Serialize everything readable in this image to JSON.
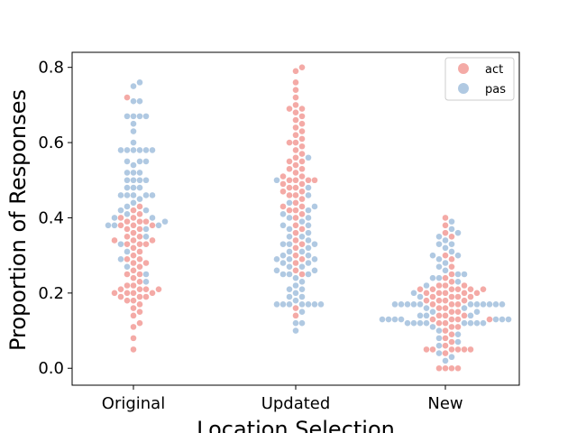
{
  "chart_data": {
    "type": "swarm",
    "xlabel": "Location Selection",
    "ylabel": "Proportion of Responses",
    "ylim": [
      -0.045,
      0.84
    ],
    "yticks": [
      "0.0",
      "0.2",
      "0.4",
      "0.6",
      "0.8"
    ],
    "ytick_values": [
      0.0,
      0.2,
      0.4,
      0.6,
      0.8
    ],
    "categories": [
      "Original",
      "Updated",
      "New"
    ],
    "grid": false,
    "legend_position": "top-right",
    "series": [
      {
        "name": "act",
        "color": "#f4aaa6",
        "values": [
          [
            0.72,
            0.43,
            0.42,
            0.41,
            0.4,
            0.4,
            0.39,
            0.39,
            0.39,
            0.38,
            0.38,
            0.38,
            0.37,
            0.37,
            0.36,
            0.35,
            0.35,
            0.34,
            0.34,
            0.34,
            0.33,
            0.33,
            0.33,
            0.32,
            0.31,
            0.3,
            0.29,
            0.29,
            0.28,
            0.28,
            0.27,
            0.26,
            0.25,
            0.25,
            0.24,
            0.23,
            0.22,
            0.22,
            0.21,
            0.21,
            0.21,
            0.21,
            0.2,
            0.2,
            0.2,
            0.2,
            0.19,
            0.19,
            0.19,
            0.18,
            0.18,
            0.17,
            0.16,
            0.15,
            0.14,
            0.12,
            0.11,
            0.08,
            0.05
          ],
          [
            0.8,
            0.79,
            0.76,
            0.74,
            0.72,
            0.7,
            0.69,
            0.69,
            0.68,
            0.67,
            0.66,
            0.65,
            0.64,
            0.63,
            0.62,
            0.61,
            0.6,
            0.6,
            0.59,
            0.58,
            0.57,
            0.56,
            0.55,
            0.55,
            0.54,
            0.53,
            0.53,
            0.52,
            0.51,
            0.51,
            0.5,
            0.5,
            0.5,
            0.5,
            0.49,
            0.49,
            0.48,
            0.48,
            0.47,
            0.47,
            0.46,
            0.46,
            0.45,
            0.44,
            0.43,
            0.43,
            0.42,
            0.42,
            0.41,
            0.4,
            0.38,
            0.37,
            0.36,
            0.34,
            0.33,
            0.32,
            0.3,
            0.29,
            0.28,
            0.26,
            0.25,
            0.16,
            0.14
          ],
          [
            0.4,
            0.38,
            0.36,
            0.35,
            0.3,
            0.29,
            0.27,
            0.25,
            0.24,
            0.23,
            0.22,
            0.22,
            0.22,
            0.21,
            0.21,
            0.21,
            0.21,
            0.21,
            0.21,
            0.2,
            0.2,
            0.2,
            0.2,
            0.2,
            0.19,
            0.19,
            0.19,
            0.19,
            0.18,
            0.18,
            0.18,
            0.18,
            0.17,
            0.17,
            0.17,
            0.16,
            0.16,
            0.15,
            0.15,
            0.14,
            0.14,
            0.14,
            0.13,
            0.13,
            0.13,
            0.13,
            0.12,
            0.12,
            0.11,
            0.11,
            0.1,
            0.09,
            0.08,
            0.07,
            0.06,
            0.05,
            0.05,
            0.05,
            0.05,
            0.05,
            0.05,
            0.04,
            0.0,
            0.0,
            0.0,
            0.0
          ]
        ]
      },
      {
        "name": "pas",
        "color": "#b0c9e2",
        "values": [
          [
            0.76,
            0.75,
            0.71,
            0.71,
            0.67,
            0.67,
            0.67,
            0.67,
            0.65,
            0.63,
            0.6,
            0.58,
            0.58,
            0.58,
            0.58,
            0.58,
            0.58,
            0.55,
            0.55,
            0.55,
            0.54,
            0.52,
            0.52,
            0.52,
            0.5,
            0.5,
            0.5,
            0.5,
            0.48,
            0.48,
            0.48,
            0.46,
            0.46,
            0.46,
            0.46,
            0.46,
            0.45,
            0.44,
            0.43,
            0.42,
            0.42,
            0.41,
            0.4,
            0.4,
            0.39,
            0.38,
            0.38,
            0.38,
            0.37,
            0.35,
            0.33,
            0.31,
            0.29,
            0.27,
            0.25,
            0.23
          ],
          [
            0.56,
            0.5,
            0.48,
            0.46,
            0.44,
            0.43,
            0.42,
            0.41,
            0.4,
            0.4,
            0.39,
            0.38,
            0.38,
            0.37,
            0.36,
            0.35,
            0.35,
            0.34,
            0.33,
            0.33,
            0.33,
            0.32,
            0.31,
            0.31,
            0.3,
            0.3,
            0.29,
            0.29,
            0.29,
            0.28,
            0.28,
            0.27,
            0.27,
            0.26,
            0.26,
            0.25,
            0.25,
            0.25,
            0.24,
            0.23,
            0.22,
            0.21,
            0.21,
            0.2,
            0.19,
            0.19,
            0.18,
            0.17,
            0.17,
            0.17,
            0.17,
            0.17,
            0.17,
            0.17,
            0.15,
            0.12,
            0.12,
            0.1
          ],
          [
            0.39,
            0.37,
            0.36,
            0.35,
            0.34,
            0.33,
            0.33,
            0.32,
            0.31,
            0.3,
            0.3,
            0.29,
            0.28,
            0.27,
            0.26,
            0.25,
            0.25,
            0.24,
            0.24,
            0.23,
            0.22,
            0.2,
            0.19,
            0.17,
            0.17,
            0.17,
            0.17,
            0.17,
            0.17,
            0.17,
            0.17,
            0.17,
            0.17,
            0.17,
            0.16,
            0.16,
            0.15,
            0.15,
            0.14,
            0.14,
            0.14,
            0.13,
            0.13,
            0.13,
            0.13,
            0.13,
            0.13,
            0.13,
            0.12,
            0.12,
            0.12,
            0.12,
            0.12,
            0.12,
            0.12,
            0.12,
            0.11,
            0.1,
            0.09,
            0.08,
            0.07,
            0.06,
            0.04,
            0.03,
            0.02
          ]
        ]
      }
    ]
  }
}
